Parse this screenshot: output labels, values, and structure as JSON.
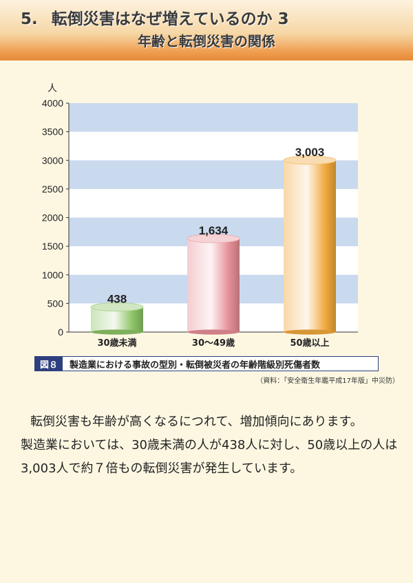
{
  "header": {
    "number": "5.",
    "title": "転倒災害はなぜ増えているのか 3",
    "subtitle": "年齢と転倒災害の関係"
  },
  "chart_data": {
    "type": "bar",
    "ylabel": "人",
    "ylim": [
      0,
      4000
    ],
    "yticks": [
      0,
      500,
      1000,
      1500,
      2000,
      2500,
      3000,
      3500,
      4000
    ],
    "ytick_labels": [
      "0",
      "500",
      "1000",
      "1500",
      "2000",
      "2500",
      "3000",
      "3500",
      "4000"
    ],
    "categories": [
      "30歳未満",
      "30～49歳",
      "50歳以上"
    ],
    "values": [
      438,
      1634,
      3003
    ],
    "value_labels": [
      "438",
      "1,634",
      "3,003"
    ],
    "colors": [
      "#8cc365",
      "#e68e97",
      "#f0a83c"
    ],
    "grid": "alternating horizontal bands"
  },
  "caption": {
    "label": "図８",
    "text": "製造業における事故の型別・転倒被災者の年齢階級別死傷者数",
    "source": "（資料：「安全衛生年鑑平成17年版」中災防）"
  },
  "body": {
    "paragraph1": "転倒災害も年齢が高くなるにつれて、増加傾向にあります。",
    "paragraph2": "製造業においては、30歳未満の人が438人に対し、50歳以上の人は3,003人で約７倍もの転倒災害が発生しています。"
  }
}
